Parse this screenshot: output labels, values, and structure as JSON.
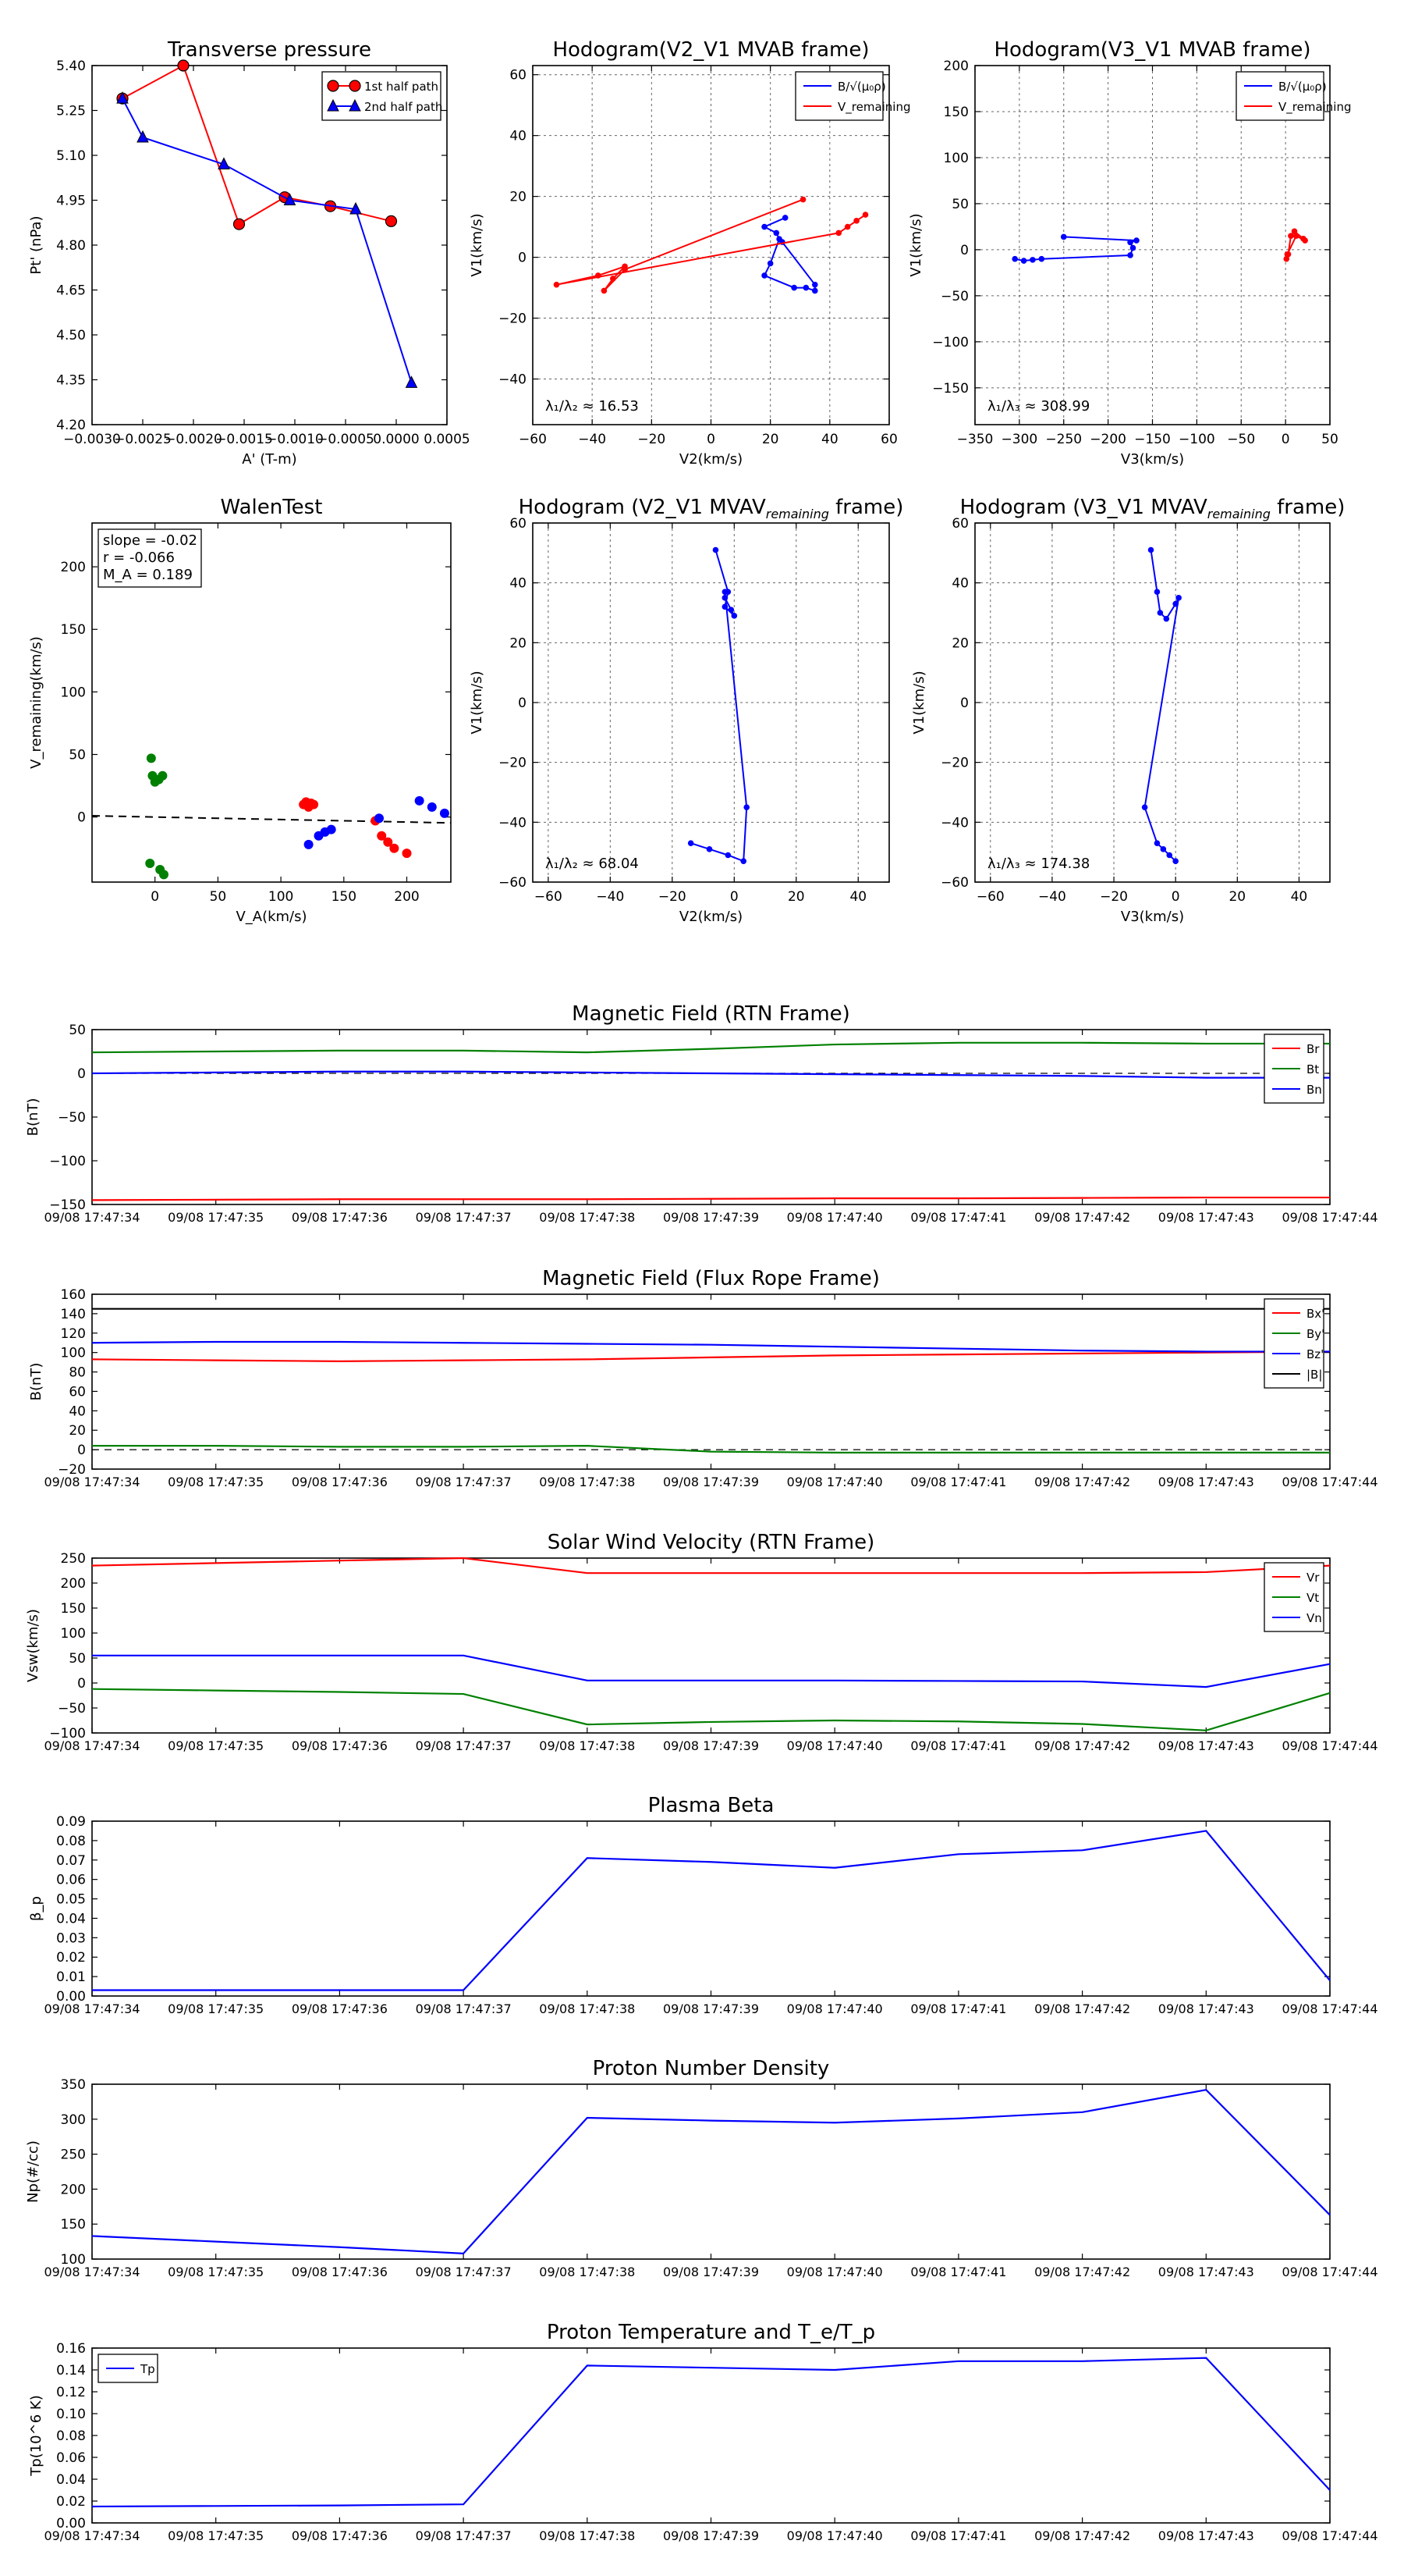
{
  "chart_data": [
    {
      "id": "transverse_pressure",
      "type": "line",
      "title": "Transverse pressure",
      "xlabel": "A' (T-m)",
      "ylabel": "Pt' (nPa)",
      "xlim": [
        -0.003,
        0.0005
      ],
      "ylim": [
        4.2,
        5.4
      ],
      "xticks": [
        -0.003,
        -0.0025,
        -0.002,
        -0.0015,
        -0.001,
        -0.0005,
        0.0,
        0.0005
      ],
      "xticklabels": [
        "−0.0030",
        "−0.0025",
        "−0.0020",
        "−0.0015",
        "−0.0010",
        "−0.0005",
        "0.0000",
        "0.0005"
      ],
      "yticks": [
        4.2,
        4.35,
        4.5,
        4.65,
        4.8,
        4.95,
        5.1,
        5.25,
        5.4
      ],
      "yticklabels": [
        "4.20",
        "4.35",
        "4.50",
        "4.65",
        "4.80",
        "4.95",
        "5.10",
        "5.25",
        "5.40"
      ],
      "grid": false,
      "legend_position": "top-right",
      "series": [
        {
          "name": "1st half path",
          "color": "#ff0000",
          "marker": "circle",
          "x": [
            -0.0027,
            -0.0021,
            -0.00155,
            -0.0011,
            -0.00065,
            -5e-05
          ],
          "y": [
            5.29,
            5.4,
            4.87,
            4.96,
            4.93,
            4.88
          ]
        },
        {
          "name": "2nd half path",
          "color": "#0000ff",
          "marker": "triangle",
          "x": [
            -0.0027,
            -0.0025,
            -0.0017,
            -0.00105,
            -0.0004,
            0.00015
          ],
          "y": [
            5.29,
            5.16,
            5.07,
            4.95,
            4.92,
            4.34
          ]
        }
      ]
    },
    {
      "id": "hodogram_v2v1_mvab",
      "type": "line",
      "title": "Hodogram(V2_V1 MVAB frame)",
      "xlabel": "V2(km/s)",
      "ylabel": "V1(km/s)",
      "xlim": [
        -60,
        60
      ],
      "ylim": [
        -55,
        63
      ],
      "xticks": [
        -60,
        -40,
        -20,
        0,
        20,
        40,
        60
      ],
      "xticklabels": [
        "−60",
        "−40",
        "−20",
        "0",
        "20",
        "40",
        "60"
      ],
      "yticks": [
        -40,
        -20,
        0,
        20,
        40,
        60
      ],
      "yticklabels": [
        "−40",
        "−20",
        "0",
        "20",
        "40",
        "60"
      ],
      "grid": true,
      "legend_position": "top-right",
      "annotation": "λ₁/λ₂ ≈ 16.53",
      "series": [
        {
          "name": "B/√(μ₀ρ)",
          "color": "#0000ff",
          "marker": "dot",
          "x": [
            25,
            18,
            22,
            23,
            20,
            18,
            28,
            32,
            35,
            35,
            24
          ],
          "y": [
            13,
            10,
            8,
            6,
            -2,
            -6,
            -10,
            -10,
            -11,
            -9,
            5
          ]
        },
        {
          "name": "V_remaining",
          "color": "#ff0000",
          "marker": "dot",
          "x": [
            52,
            49,
            46,
            43,
            -52,
            -38,
            -29,
            -33,
            -36,
            -29,
            31
          ],
          "y": [
            14,
            12,
            10,
            8,
            -9,
            -6,
            -3,
            -7,
            -11,
            -4,
            19
          ]
        }
      ]
    },
    {
      "id": "hodogram_v3v1_mvab",
      "type": "line",
      "title": "Hodogram(V3_V1 MVAB frame)",
      "xlabel": "V3(km/s)",
      "ylabel": "V1(km/s)",
      "xlim": [
        -350,
        50
      ],
      "ylim": [
        -190,
        200
      ],
      "xticks": [
        -350,
        -300,
        -250,
        -200,
        -150,
        -100,
        -50,
        0,
        50
      ],
      "xticklabels": [
        "−350",
        "−300",
        "−250",
        "−200",
        "−150",
        "−100",
        "−50",
        "0",
        "50"
      ],
      "yticks": [
        -150,
        -100,
        -50,
        0,
        50,
        100,
        150,
        200
      ],
      "yticklabels": [
        "−150",
        "−100",
        "−50",
        "0",
        "50",
        "100",
        "150",
        "200"
      ],
      "grid": true,
      "legend_position": "top-right",
      "annotation": "λ₁/λ₃ ≈ 308.99",
      "series": [
        {
          "name": "B/√(μ₀ρ)",
          "color": "#0000ff",
          "marker": "dot",
          "x": [
            -305,
            -295,
            -285,
            -275,
            -175,
            -172,
            -175,
            -168,
            -250
          ],
          "y": [
            -10,
            -12,
            -11,
            -10,
            -6,
            2,
            8,
            10,
            14
          ]
        },
        {
          "name": "V_remaining",
          "color": "#ff0000",
          "marker": "dot",
          "x": [
            1,
            3,
            6,
            10,
            20,
            22,
            12,
            2
          ],
          "y": [
            -10,
            -5,
            15,
            20,
            12,
            10,
            15,
            -5
          ]
        }
      ]
    },
    {
      "id": "walen_test",
      "type": "scatter",
      "title": "WalenTest",
      "xlabel": "V_A(km/s)",
      "ylabel": "V_remaining(km/s)",
      "xlim": [
        -50,
        235
      ],
      "ylim": [
        -52,
        235
      ],
      "xticks": [
        0,
        50,
        100,
        150,
        200
      ],
      "xticklabels": [
        "0",
        "50",
        "100",
        "150",
        "200"
      ],
      "yticks": [
        0,
        50,
        100,
        150,
        200
      ],
      "yticklabels": [
        "0",
        "50",
        "100",
        "150",
        "200"
      ],
      "grid": false,
      "stats": [
        "slope = -0.02",
        "r = -0.066",
        "M_A = 0.189"
      ],
      "fit": {
        "slope": -0.02,
        "intercept": 0
      },
      "series": [
        {
          "color": "#008000",
          "x": [
            -3,
            -2,
            0,
            3,
            6,
            -4,
            4,
            7
          ],
          "y": [
            47,
            33,
            28,
            30,
            33,
            -37,
            -42,
            -46
          ]
        },
        {
          "color": "#ff0000",
          "x": [
            118,
            120,
            122,
            124,
            126,
            175,
            180,
            185,
            190,
            200
          ],
          "y": [
            10,
            12,
            8,
            11,
            10,
            -3,
            -15,
            -20,
            -25,
            -29
          ]
        },
        {
          "color": "#0000ff",
          "x": [
            122,
            130,
            135,
            140,
            178,
            210,
            220,
            230
          ],
          "y": [
            -22,
            -15,
            -12,
            -10,
            -1,
            13,
            8,
            3
          ]
        }
      ]
    },
    {
      "id": "hodogram_v2v1_mvav",
      "type": "line",
      "title": "Hodogram (V2_V1 MVAV",
      "title_subscript": "remaining",
      "title_tail": " frame)",
      "xlabel": "V2(km/s)",
      "ylabel": "V1(km/s)",
      "xlim": [
        -65,
        50
      ],
      "ylim": [
        -60,
        60
      ],
      "xticks": [
        -60,
        -40,
        -20,
        0,
        20,
        40
      ],
      "xticklabels": [
        "−60",
        "−40",
        "−20",
        "0",
        "20",
        "40"
      ],
      "yticks": [
        -60,
        -40,
        -20,
        0,
        20,
        40,
        60
      ],
      "yticklabels": [
        "−60",
        "−40",
        "−20",
        "0",
        "20",
        "40",
        "60"
      ],
      "grid": true,
      "annotation": "λ₁/λ₂ ≈ 68.04",
      "series": [
        {
          "color": "#0000ff",
          "marker": "dot",
          "x": [
            -6,
            -2,
            -3,
            0,
            -1,
            -3,
            -3,
            4,
            3,
            -2,
            -8,
            -14
          ],
          "y": [
            51,
            37,
            32,
            29,
            31,
            35,
            37,
            -35,
            -53,
            -51,
            -49,
            -47
          ]
        }
      ]
    },
    {
      "id": "hodogram_v3v1_mvav",
      "type": "line",
      "title": "Hodogram (V3_V1 MVAV",
      "title_subscript": "remaining",
      "title_tail": " frame)",
      "xlabel": "V3(km/s)",
      "ylabel": "V1(km/s)",
      "xlim": [
        -65,
        50
      ],
      "ylim": [
        -60,
        60
      ],
      "xticks": [
        -60,
        -40,
        -20,
        0,
        20,
        40
      ],
      "xticklabels": [
        "−60",
        "−40",
        "−20",
        "0",
        "20",
        "40"
      ],
      "yticks": [
        -60,
        -40,
        -20,
        0,
        20,
        40,
        60
      ],
      "yticklabels": [
        "−60",
        "−40",
        "−20",
        "0",
        "20",
        "40",
        "60"
      ],
      "grid": true,
      "annotation": "λ₁/λ₃ ≈ 174.38",
      "series": [
        {
          "color": "#0000ff",
          "marker": "dot",
          "x": [
            -8,
            -6,
            -5,
            -3,
            0,
            1,
            -10,
            -6,
            -4,
            -2,
            0
          ],
          "y": [
            51,
            37,
            30,
            28,
            33,
            35,
            -35,
            -47,
            -49,
            -51,
            -53
          ]
        }
      ]
    },
    {
      "id": "magnetic_field_rtn",
      "type": "line",
      "title": "Magnetic Field (RTN Frame)",
      "xlabel": "",
      "ylabel": "B(nT)",
      "x": [
        "09/08 17:47:34",
        "09/08 17:47:35",
        "09/08 17:47:36",
        "09/08 17:47:37",
        "09/08 17:47:38",
        "09/08 17:47:39",
        "09/08 17:47:40",
        "09/08 17:47:41",
        "09/08 17:47:42",
        "09/08 17:47:43",
        "09/08 17:47:44"
      ],
      "ylim": [
        -150,
        50
      ],
      "yticks": [
        -150,
        -100,
        -50,
        0,
        50
      ],
      "yticklabels": [
        "−150",
        "−100",
        "−50",
        "0",
        "50"
      ],
      "grid": false,
      "zero_line": true,
      "legend_position": "right",
      "series": [
        {
          "name": "Br",
          "color": "#ff0000",
          "values": [
            -145,
            -144.5,
            -144,
            -144,
            -144,
            -143.5,
            -143,
            -143,
            -142.5,
            -142,
            -142
          ]
        },
        {
          "name": "Bt",
          "color": "#008000",
          "values": [
            24,
            25,
            26,
            26,
            24,
            28,
            33,
            35,
            35,
            34,
            34
          ]
        },
        {
          "name": "Bn",
          "color": "#0000ff",
          "values": [
            0,
            1,
            2,
            2,
            1,
            0,
            -1,
            -2,
            -3,
            -5,
            -5
          ]
        }
      ]
    },
    {
      "id": "magnetic_field_flux_rope",
      "type": "line",
      "title": "Magnetic Field (Flux Rope Frame)",
      "xlabel": "",
      "ylabel": "B(nT)",
      "x": [
        "09/08 17:47:34",
        "09/08 17:47:35",
        "09/08 17:47:36",
        "09/08 17:47:37",
        "09/08 17:47:38",
        "09/08 17:47:39",
        "09/08 17:47:40",
        "09/08 17:47:41",
        "09/08 17:47:42",
        "09/08 17:47:43",
        "09/08 17:47:44"
      ],
      "ylim": [
        -20,
        160
      ],
      "yticks": [
        -20,
        0,
        20,
        40,
        60,
        80,
        100,
        120,
        140,
        160
      ],
      "yticklabels": [
        "−20",
        "0",
        "20",
        "40",
        "60",
        "80",
        "100",
        "120",
        "140",
        "160"
      ],
      "grid": false,
      "zero_line": true,
      "legend_position": "right",
      "series": [
        {
          "name": "Bx'",
          "color": "#ff0000",
          "values": [
            93,
            92,
            91,
            92,
            93,
            95,
            97,
            98,
            99,
            100,
            101
          ]
        },
        {
          "name": "By'",
          "color": "#008000",
          "values": [
            4,
            4,
            3,
            3,
            4,
            -2,
            -3,
            -3,
            -3,
            -3,
            -3
          ]
        },
        {
          "name": "Bz'",
          "color": "#0000ff",
          "values": [
            110,
            111,
            111,
            110,
            109,
            108,
            106,
            104,
            102,
            101,
            101
          ]
        },
        {
          "name": "|B|",
          "color": "#000000",
          "values": [
            145,
            145,
            145,
            145,
            145,
            145,
            145,
            145,
            145,
            145,
            145
          ]
        }
      ]
    },
    {
      "id": "solar_wind_velocity",
      "type": "line",
      "title": "Solar Wind Velocity (RTN Frame)",
      "xlabel": "",
      "ylabel": "Vsw(km/s)",
      "x": [
        "09/08 17:47:34",
        "09/08 17:47:35",
        "09/08 17:47:36",
        "09/08 17:47:37",
        "09/08 17:47:38",
        "09/08 17:47:39",
        "09/08 17:47:40",
        "09/08 17:47:41",
        "09/08 17:47:42",
        "09/08 17:47:43",
        "09/08 17:47:44"
      ],
      "ylim": [
        -100,
        250
      ],
      "yticks": [
        -100,
        -50,
        0,
        50,
        100,
        150,
        200,
        250
      ],
      "yticklabels": [
        "−100",
        "−50",
        "0",
        "50",
        "100",
        "150",
        "200",
        "250"
      ],
      "grid": false,
      "legend_position": "right",
      "series": [
        {
          "name": "Vr",
          "color": "#ff0000",
          "values": [
            235,
            240,
            245,
            250,
            220,
            220,
            220,
            220,
            220,
            222,
            235
          ]
        },
        {
          "name": "Vt",
          "color": "#008000",
          "values": [
            -12,
            -15,
            -18,
            -22,
            -83,
            -78,
            -75,
            -77,
            -82,
            -95,
            -20
          ]
        },
        {
          "name": "Vn",
          "color": "#0000ff",
          "values": [
            55,
            55,
            55,
            55,
            5,
            5,
            5,
            4,
            3,
            -8,
            38
          ]
        }
      ]
    },
    {
      "id": "plasma_beta",
      "type": "line",
      "title": "Plasma Beta",
      "xlabel": "",
      "ylabel": "β_p",
      "x": [
        "09/08 17:47:34",
        "09/08 17:47:35",
        "09/08 17:47:36",
        "09/08 17:47:37",
        "09/08 17:47:38",
        "09/08 17:47:39",
        "09/08 17:47:40",
        "09/08 17:47:41",
        "09/08 17:47:42",
        "09/08 17:47:43",
        "09/08 17:47:44"
      ],
      "ylim": [
        0,
        0.09
      ],
      "yticks": [
        0,
        0.01,
        0.02,
        0.03,
        0.04,
        0.05,
        0.06,
        0.07,
        0.08,
        0.09
      ],
      "yticklabels": [
        "0.00",
        "0.01",
        "0.02",
        "0.03",
        "0.04",
        "0.05",
        "0.06",
        "0.07",
        "0.08",
        "0.09"
      ],
      "grid": false,
      "series": [
        {
          "color": "#0000ff",
          "values": [
            0.003,
            0.003,
            0.003,
            0.003,
            0.071,
            0.069,
            0.066,
            0.073,
            0.075,
            0.085,
            0.008
          ]
        }
      ]
    },
    {
      "id": "proton_number_density",
      "type": "line",
      "title": "Proton Number Density",
      "xlabel": "",
      "ylabel": "Np(#/cc)",
      "x": [
        "09/08 17:47:34",
        "09/08 17:47:35",
        "09/08 17:47:36",
        "09/08 17:47:37",
        "09/08 17:47:38",
        "09/08 17:47:39",
        "09/08 17:47:40",
        "09/08 17:47:41",
        "09/08 17:47:42",
        "09/08 17:47:43",
        "09/08 17:47:44"
      ],
      "ylim": [
        100,
        350
      ],
      "yticks": [
        100,
        150,
        200,
        250,
        300,
        350
      ],
      "yticklabels": [
        "100",
        "150",
        "200",
        "250",
        "300",
        "350"
      ],
      "grid": false,
      "series": [
        {
          "color": "#0000ff",
          "values": [
            133,
            125,
            117,
            108,
            302,
            298,
            295,
            301,
            310,
            342,
            163
          ]
        }
      ]
    },
    {
      "id": "proton_temperature",
      "type": "line",
      "title": "Proton Temperature and T_e/T_p",
      "xlabel": "",
      "ylabel": "Tp(10^6 K)",
      "x": [
        "09/08 17:47:34",
        "09/08 17:47:35",
        "09/08 17:47:36",
        "09/08 17:47:37",
        "09/08 17:47:38",
        "09/08 17:47:39",
        "09/08 17:47:40",
        "09/08 17:47:41",
        "09/08 17:47:42",
        "09/08 17:47:43",
        "09/08 17:47:44"
      ],
      "ylim": [
        0,
        0.16
      ],
      "yticks": [
        0,
        0.02,
        0.04,
        0.06,
        0.08,
        0.1,
        0.12,
        0.14,
        0.16
      ],
      "yticklabels": [
        "0.00",
        "0.02",
        "0.04",
        "0.06",
        "0.08",
        "0.10",
        "0.12",
        "0.14",
        "0.16"
      ],
      "grid": false,
      "legend_position": "top-left",
      "series": [
        {
          "name": "Tp",
          "color": "#0000ff",
          "values": [
            0.015,
            0.0155,
            0.016,
            0.017,
            0.144,
            0.142,
            0.14,
            0.148,
            0.148,
            0.151,
            0.03
          ]
        }
      ]
    }
  ]
}
